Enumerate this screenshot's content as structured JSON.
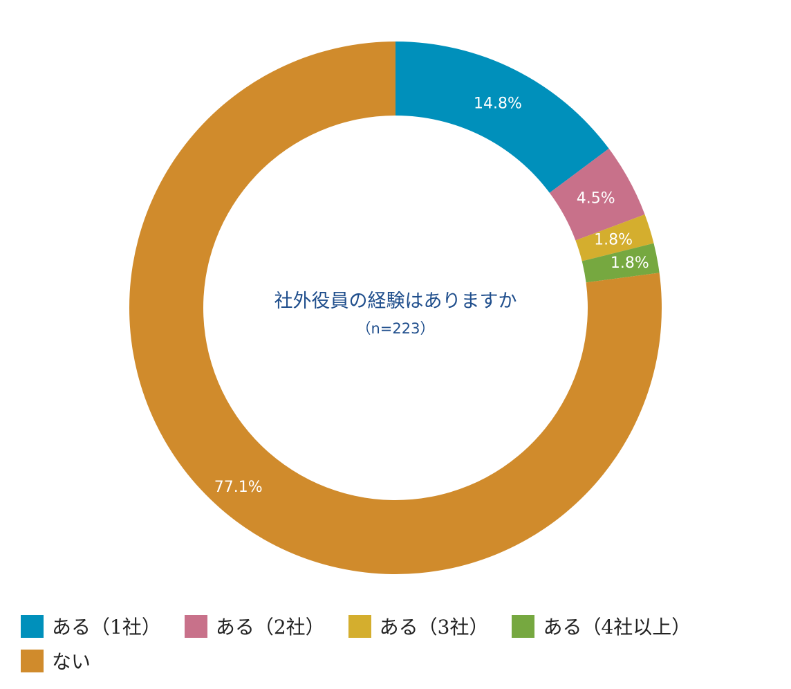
{
  "chart_data": {
    "type": "pie",
    "donut": true,
    "title": "社外役員の経験はありますか",
    "subtitle": "（n=223）",
    "categories": [
      "ある（1社）",
      "ある（2社）",
      "ある（3社）",
      "ある（4社以上）",
      "ない"
    ],
    "values": [
      14.8,
      4.5,
      1.8,
      1.8,
      77.1
    ],
    "value_labels": [
      "14.8%",
      "4.5%",
      "1.8%",
      "1.8%",
      "77.1%"
    ],
    "colors": [
      "#0090bb",
      "#c8718a",
      "#d4ae2e",
      "#76a840",
      "#d08b2c"
    ],
    "legend_position": "bottom"
  },
  "legend": [
    {
      "label": "ある（1社）",
      "color": "#0090bb"
    },
    {
      "label": "ある（2社）",
      "color": "#c8718a"
    },
    {
      "label": "ある（3社）",
      "color": "#d4ae2e"
    },
    {
      "label": "ある（4社以上）",
      "color": "#76a840"
    },
    {
      "label": "ない",
      "color": "#d08b2c"
    }
  ]
}
